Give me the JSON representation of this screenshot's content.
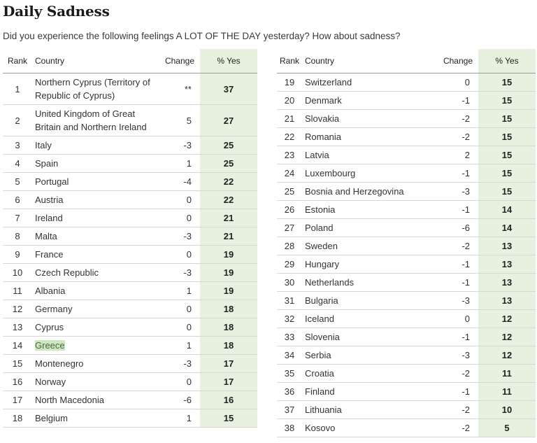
{
  "title": "Daily Sadness",
  "subtitle": "Did you experience the following feelings A LOT OF THE DAY yesterday? How about sadness?",
  "headers": {
    "rank": "Rank",
    "country": "Country",
    "change": "Change",
    "yes": "% Yes"
  },
  "left_rows": [
    {
      "rank": "1",
      "country": "Northern Cyprus (Territory of Republic of Cyprus)",
      "change": "**",
      "yes": "37"
    },
    {
      "rank": "2",
      "country": "United Kingdom of Great Britain and Northern Ireland",
      "change": "5",
      "yes": "27"
    },
    {
      "rank": "3",
      "country": "Italy",
      "change": "-3",
      "yes": "25"
    },
    {
      "rank": "4",
      "country": "Spain",
      "change": "1",
      "yes": "25"
    },
    {
      "rank": "5",
      "country": "Portugal",
      "change": "-4",
      "yes": "22"
    },
    {
      "rank": "6",
      "country": "Austria",
      "change": "0",
      "yes": "22"
    },
    {
      "rank": "7",
      "country": "Ireland",
      "change": "0",
      "yes": "21"
    },
    {
      "rank": "8",
      "country": "Malta",
      "change": "-3",
      "yes": "21"
    },
    {
      "rank": "9",
      "country": "France",
      "change": "0",
      "yes": "19"
    },
    {
      "rank": "10",
      "country": "Czech Republic",
      "change": "-3",
      "yes": "19"
    },
    {
      "rank": "11",
      "country": "Albania",
      "change": "1",
      "yes": "19"
    },
    {
      "rank": "12",
      "country": "Germany",
      "change": "0",
      "yes": "18"
    },
    {
      "rank": "13",
      "country": "Cyprus",
      "change": "0",
      "yes": "18"
    },
    {
      "rank": "14",
      "country": "Greece",
      "change": "1",
      "yes": "18",
      "highlight": true
    },
    {
      "rank": "15",
      "country": "Montenegro",
      "change": "-3",
      "yes": "17"
    },
    {
      "rank": "16",
      "country": "Norway",
      "change": "0",
      "yes": "17"
    },
    {
      "rank": "17",
      "country": "North Macedonia",
      "change": "-6",
      "yes": "16"
    },
    {
      "rank": "18",
      "country": "Belgium",
      "change": "1",
      "yes": "15"
    }
  ],
  "right_rows": [
    {
      "rank": "19",
      "country": "Switzerland",
      "change": "0",
      "yes": "15"
    },
    {
      "rank": "20",
      "country": "Denmark",
      "change": "-1",
      "yes": "15"
    },
    {
      "rank": "21",
      "country": "Slovakia",
      "change": "-2",
      "yes": "15"
    },
    {
      "rank": "22",
      "country": "Romania",
      "change": "-2",
      "yes": "15"
    },
    {
      "rank": "23",
      "country": "Latvia",
      "change": "2",
      "yes": "15"
    },
    {
      "rank": "24",
      "country": "Luxembourg",
      "change": "-1",
      "yes": "15"
    },
    {
      "rank": "25",
      "country": "Bosnia and Herzegovina",
      "change": "-3",
      "yes": "15"
    },
    {
      "rank": "26",
      "country": "Estonia",
      "change": "-1",
      "yes": "14"
    },
    {
      "rank": "27",
      "country": "Poland",
      "change": "-6",
      "yes": "14"
    },
    {
      "rank": "28",
      "country": "Sweden",
      "change": "-2",
      "yes": "13"
    },
    {
      "rank": "29",
      "country": "Hungary",
      "change": "-1",
      "yes": "13"
    },
    {
      "rank": "30",
      "country": "Netherlands",
      "change": "-1",
      "yes": "13"
    },
    {
      "rank": "31",
      "country": "Bulgaria",
      "change": "-3",
      "yes": "13"
    },
    {
      "rank": "32",
      "country": "Iceland",
      "change": "0",
      "yes": "12"
    },
    {
      "rank": "33",
      "country": "Slovenia",
      "change": "-1",
      "yes": "12"
    },
    {
      "rank": "34",
      "country": "Serbia",
      "change": "-3",
      "yes": "12"
    },
    {
      "rank": "35",
      "country": "Croatia",
      "change": "-2",
      "yes": "11"
    },
    {
      "rank": "36",
      "country": "Finland",
      "change": "-1",
      "yes": "11"
    },
    {
      "rank": "37",
      "country": "Lithuania",
      "change": "-2",
      "yes": "10"
    },
    {
      "rank": "38",
      "country": "Kosovo",
      "change": "-2",
      "yes": "5"
    }
  ],
  "colors": {
    "yes_column_bg": "#e6f2df",
    "highlight_bg": "#cfe6c3"
  }
}
